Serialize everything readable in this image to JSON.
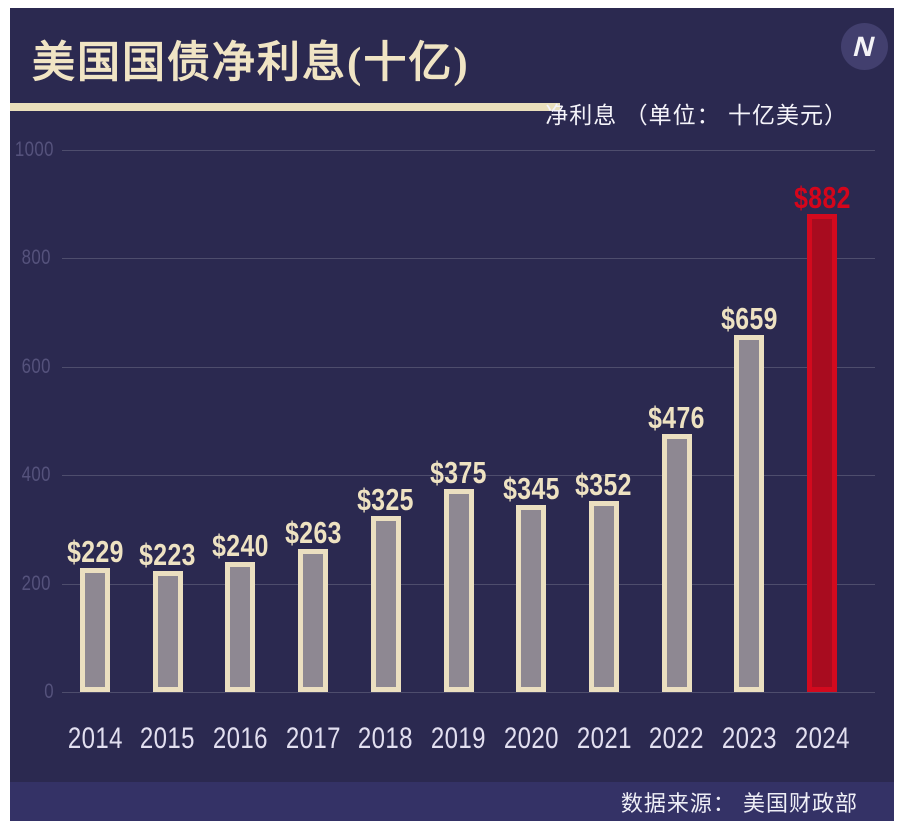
{
  "header": {
    "title": "美国国债净利息(十亿)",
    "legend": "净利息 （单位： 十亿美元）",
    "logo_letter": "N"
  },
  "footer": {
    "source": "数据来源： 美国财政部"
  },
  "colors": {
    "background": "#2b2950",
    "footer_bar": "#343266",
    "title_text": "#f0e4c4",
    "accent_line": "#eadfbc",
    "bar_fill": "#8e8892",
    "bar_border": "#ebdfc0",
    "highlight_fill": "#a80c1f",
    "highlight_border": "#d30a1e",
    "highlight_label": "#d5051b",
    "value_label": "#eee2c2",
    "tick_label": "#55527c",
    "year_label": "#e2dff0"
  },
  "chart_data": {
    "type": "bar",
    "title": "美国国债净利息(十亿)",
    "series_name": "净利息",
    "unit": "十亿美元",
    "categories": [
      "2014",
      "2015",
      "2016",
      "2017",
      "2018",
      "2019",
      "2020",
      "2021",
      "2022",
      "2023",
      "2024"
    ],
    "values": [
      229,
      223,
      240,
      263,
      325,
      375,
      345,
      352,
      476,
      659,
      882
    ],
    "data_labels": [
      "$229",
      "$223",
      "$240",
      "$263",
      "$325",
      "$375",
      "$345",
      "$352",
      "$476",
      "$659",
      "$882"
    ],
    "highlight_category": "2024",
    "xlabel": "",
    "ylabel": "",
    "ylim": [
      0,
      1000
    ],
    "yticks": [
      0,
      200,
      400,
      600,
      800,
      1000
    ],
    "grid": true,
    "legend_position": "top-right",
    "source": "美国财政部"
  }
}
